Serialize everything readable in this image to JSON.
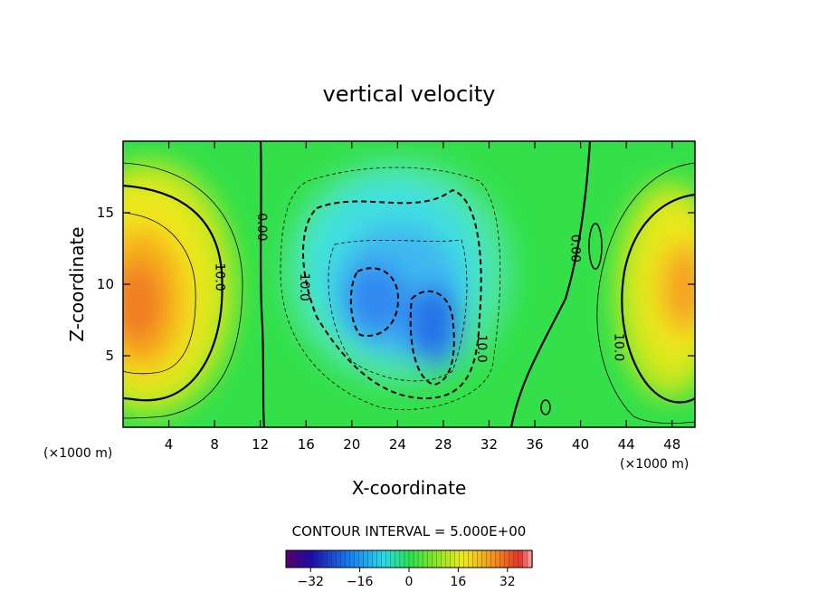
{
  "chart_data": {
    "type": "heatmap",
    "title": "vertical velocity",
    "xlabel": "X-coordinate",
    "ylabel": "Z-coordinate",
    "x_unit": "(×1000 m)",
    "y_unit": "(×1000 m)",
    "xlim": [
      0,
      50
    ],
    "ylim": [
      0,
      20
    ],
    "x_ticks": [
      4,
      8,
      12,
      16,
      20,
      24,
      28,
      32,
      36,
      40,
      44,
      48
    ],
    "y_ticks": [
      5,
      10,
      15
    ],
    "contour_interval_text": "CONTOUR INTERVAL = 5.000E+00",
    "contour_labels": [
      {
        "text": "0.00",
        "x": 11.8,
        "y": 14
      },
      {
        "text": "10.0",
        "x": 8.1,
        "y": 10.5
      },
      {
        "text": "10.0",
        "x": 15.5,
        "y": 9.8
      },
      {
        "text": "10.0",
        "x": 31.0,
        "y": 5.5
      },
      {
        "text": "0.00",
        "x": 39.2,
        "y": 12.5
      },
      {
        "text": "10.0",
        "x": 43.0,
        "y": 5.6
      }
    ],
    "features": [
      {
        "kind": "updraft",
        "x": 1.5,
        "y": 9,
        "peak": 22
      },
      {
        "kind": "downdraft",
        "x": 22,
        "y": 9.5,
        "peak": -20
      },
      {
        "kind": "downdraft",
        "x": 26.5,
        "y": 7,
        "peak": -24
      },
      {
        "kind": "updraft",
        "x": 49.5,
        "y": 10,
        "peak": 18
      }
    ],
    "colorbar": {
      "min": -40,
      "max": 40,
      "ticks": [
        -32,
        -16,
        0,
        16,
        32
      ],
      "tick_labels": [
        "−32",
        "−16",
        "0",
        "16",
        "32"
      ]
    },
    "grid": false,
    "colormap": "rainbow"
  }
}
